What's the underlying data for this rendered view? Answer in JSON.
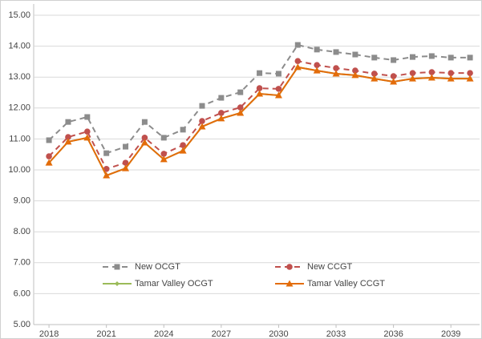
{
  "chart_data": {
    "type": "line",
    "x": [
      2018,
      2019,
      2020,
      2021,
      2022,
      2023,
      2024,
      2025,
      2026,
      2027,
      2028,
      2029,
      2030,
      2031,
      2032,
      2033,
      2034,
      2035,
      2036,
      2037,
      2038,
      2039,
      2040
    ],
    "xlim": [
      2017.2,
      2040.5
    ],
    "xticks": [
      2018,
      2021,
      2024,
      2027,
      2030,
      2033,
      2036,
      2039
    ],
    "ylim": [
      5,
      15
    ],
    "yticks": [
      {
        "value": 5,
        "label": "5.00"
      },
      {
        "value": 6,
        "label": "6.00"
      },
      {
        "value": 7,
        "label": "7.00"
      },
      {
        "value": 8,
        "label": "8.00"
      },
      {
        "value": 9,
        "label": "9.00"
      },
      {
        "value": 10,
        "label": "10.00"
      },
      {
        "value": 11,
        "label": "11.00"
      },
      {
        "value": 12,
        "label": "12.00"
      },
      {
        "value": 13,
        "label": "13.00"
      },
      {
        "value": 14,
        "label": "14.00"
      },
      {
        "value": 15,
        "label": "15.00"
      }
    ],
    "grid": true,
    "legend": "lower left",
    "series": [
      {
        "name": "New OCGT",
        "color": "#8c8c8c",
        "dashed": true,
        "marker": "square",
        "values": [
          10.96,
          11.55,
          11.71,
          10.54,
          10.75,
          11.55,
          11.04,
          11.3,
          12.07,
          12.33,
          12.51,
          13.13,
          13.11,
          14.04,
          13.89,
          13.81,
          13.73,
          13.63,
          13.55,
          13.65,
          13.68,
          13.63,
          13.63
        ]
      },
      {
        "name": "New CCGT",
        "color": "#c0504d",
        "dashed": true,
        "marker": "circle",
        "values": [
          10.44,
          11.06,
          11.24,
          10.03,
          10.23,
          11.04,
          10.52,
          10.8,
          11.58,
          11.84,
          12.02,
          12.64,
          12.62,
          13.52,
          13.39,
          13.29,
          13.21,
          13.11,
          13.03,
          13.13,
          13.16,
          13.13,
          13.13
        ]
      },
      {
        "name": "Tamar Valley OCGT",
        "color": "#9bbb59",
        "dashed": false,
        "marker": "diamond",
        "values": [
          10.23,
          10.91,
          11.04,
          9.82,
          10.05,
          10.88,
          10.34,
          10.62,
          11.4,
          11.66,
          11.84,
          12.46,
          12.41,
          13.32,
          13.21,
          13.11,
          13.06,
          12.95,
          12.85,
          12.95,
          12.98,
          12.95,
          12.95
        ]
      },
      {
        "name": "Tamar Valley CCGT",
        "color": "#e36c0a",
        "dashed": false,
        "marker": "triangle",
        "values": [
          10.23,
          10.91,
          11.04,
          9.82,
          10.05,
          10.88,
          10.34,
          10.62,
          11.4,
          11.66,
          11.84,
          12.46,
          12.41,
          13.32,
          13.21,
          13.11,
          13.06,
          12.95,
          12.85,
          12.95,
          12.98,
          12.95,
          12.95
        ]
      }
    ]
  }
}
